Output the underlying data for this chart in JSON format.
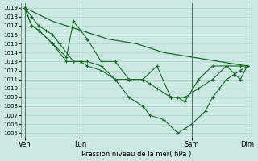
{
  "bg_color": "#cce8e2",
  "grid_color": "#aad4cc",
  "line_color": "#1a6b2a",
  "xlabel": "Pression niveau de la mer( hPa )",
  "ylim": [
    1004.5,
    1019.5
  ],
  "yticks": [
    1005,
    1006,
    1007,
    1008,
    1009,
    1010,
    1011,
    1012,
    1013,
    1014,
    1015,
    1016,
    1017,
    1018,
    1019
  ],
  "xtick_labels": [
    "Ven",
    "Lun",
    "Sam",
    "Dim"
  ],
  "xtick_positions": [
    0,
    16,
    48,
    64
  ],
  "xlim": [
    -1,
    65
  ],
  "smooth_x": [
    0,
    8,
    16,
    24,
    32,
    40,
    48,
    56,
    64
  ],
  "smooth_y": [
    1019,
    1017.5,
    1016.5,
    1015.5,
    1015,
    1014,
    1013.5,
    1013,
    1012.5
  ],
  "line1_x": [
    0,
    2,
    4,
    6,
    8,
    10,
    14,
    16,
    18,
    22,
    26,
    30,
    34,
    36,
    38,
    42,
    46,
    50,
    54,
    58,
    62,
    64
  ],
  "line1_y": [
    1019,
    1018,
    1017,
    1016.5,
    1016,
    1015,
    1013,
    1013,
    1012.5,
    1012,
    1011,
    1011,
    1011,
    1010.5,
    1010,
    1009,
    1009,
    1010,
    1011,
    1012.5,
    1011,
    1012.5
  ],
  "line2_x": [
    0,
    2,
    4,
    8,
    12,
    14,
    16,
    18,
    22,
    26,
    30,
    34,
    38,
    42,
    44,
    46,
    50,
    54,
    58,
    62,
    64
  ],
  "line2_y": [
    1019,
    1017,
    1016.5,
    1015,
    1013.5,
    1017.5,
    1016.5,
    1015.5,
    1013,
    1013,
    1011,
    1011,
    1012.5,
    1009,
    1009,
    1008.5,
    1011,
    1012.5,
    1012.5,
    1012.5,
    1012.5
  ],
  "line3_x": [
    0,
    2,
    4,
    8,
    12,
    14,
    16,
    18,
    22,
    26,
    30,
    34,
    36,
    40,
    44,
    46,
    48,
    52,
    54,
    56,
    58,
    60,
    62,
    64
  ],
  "line3_y": [
    1019,
    1017,
    1016.5,
    1015,
    1013,
    1013,
    1013,
    1013,
    1012.5,
    1011,
    1009,
    1008,
    1007,
    1006.5,
    1005,
    1005.5,
    1006,
    1007.5,
    1009,
    1010,
    1011,
    1011.5,
    1012,
    1012.5
  ]
}
